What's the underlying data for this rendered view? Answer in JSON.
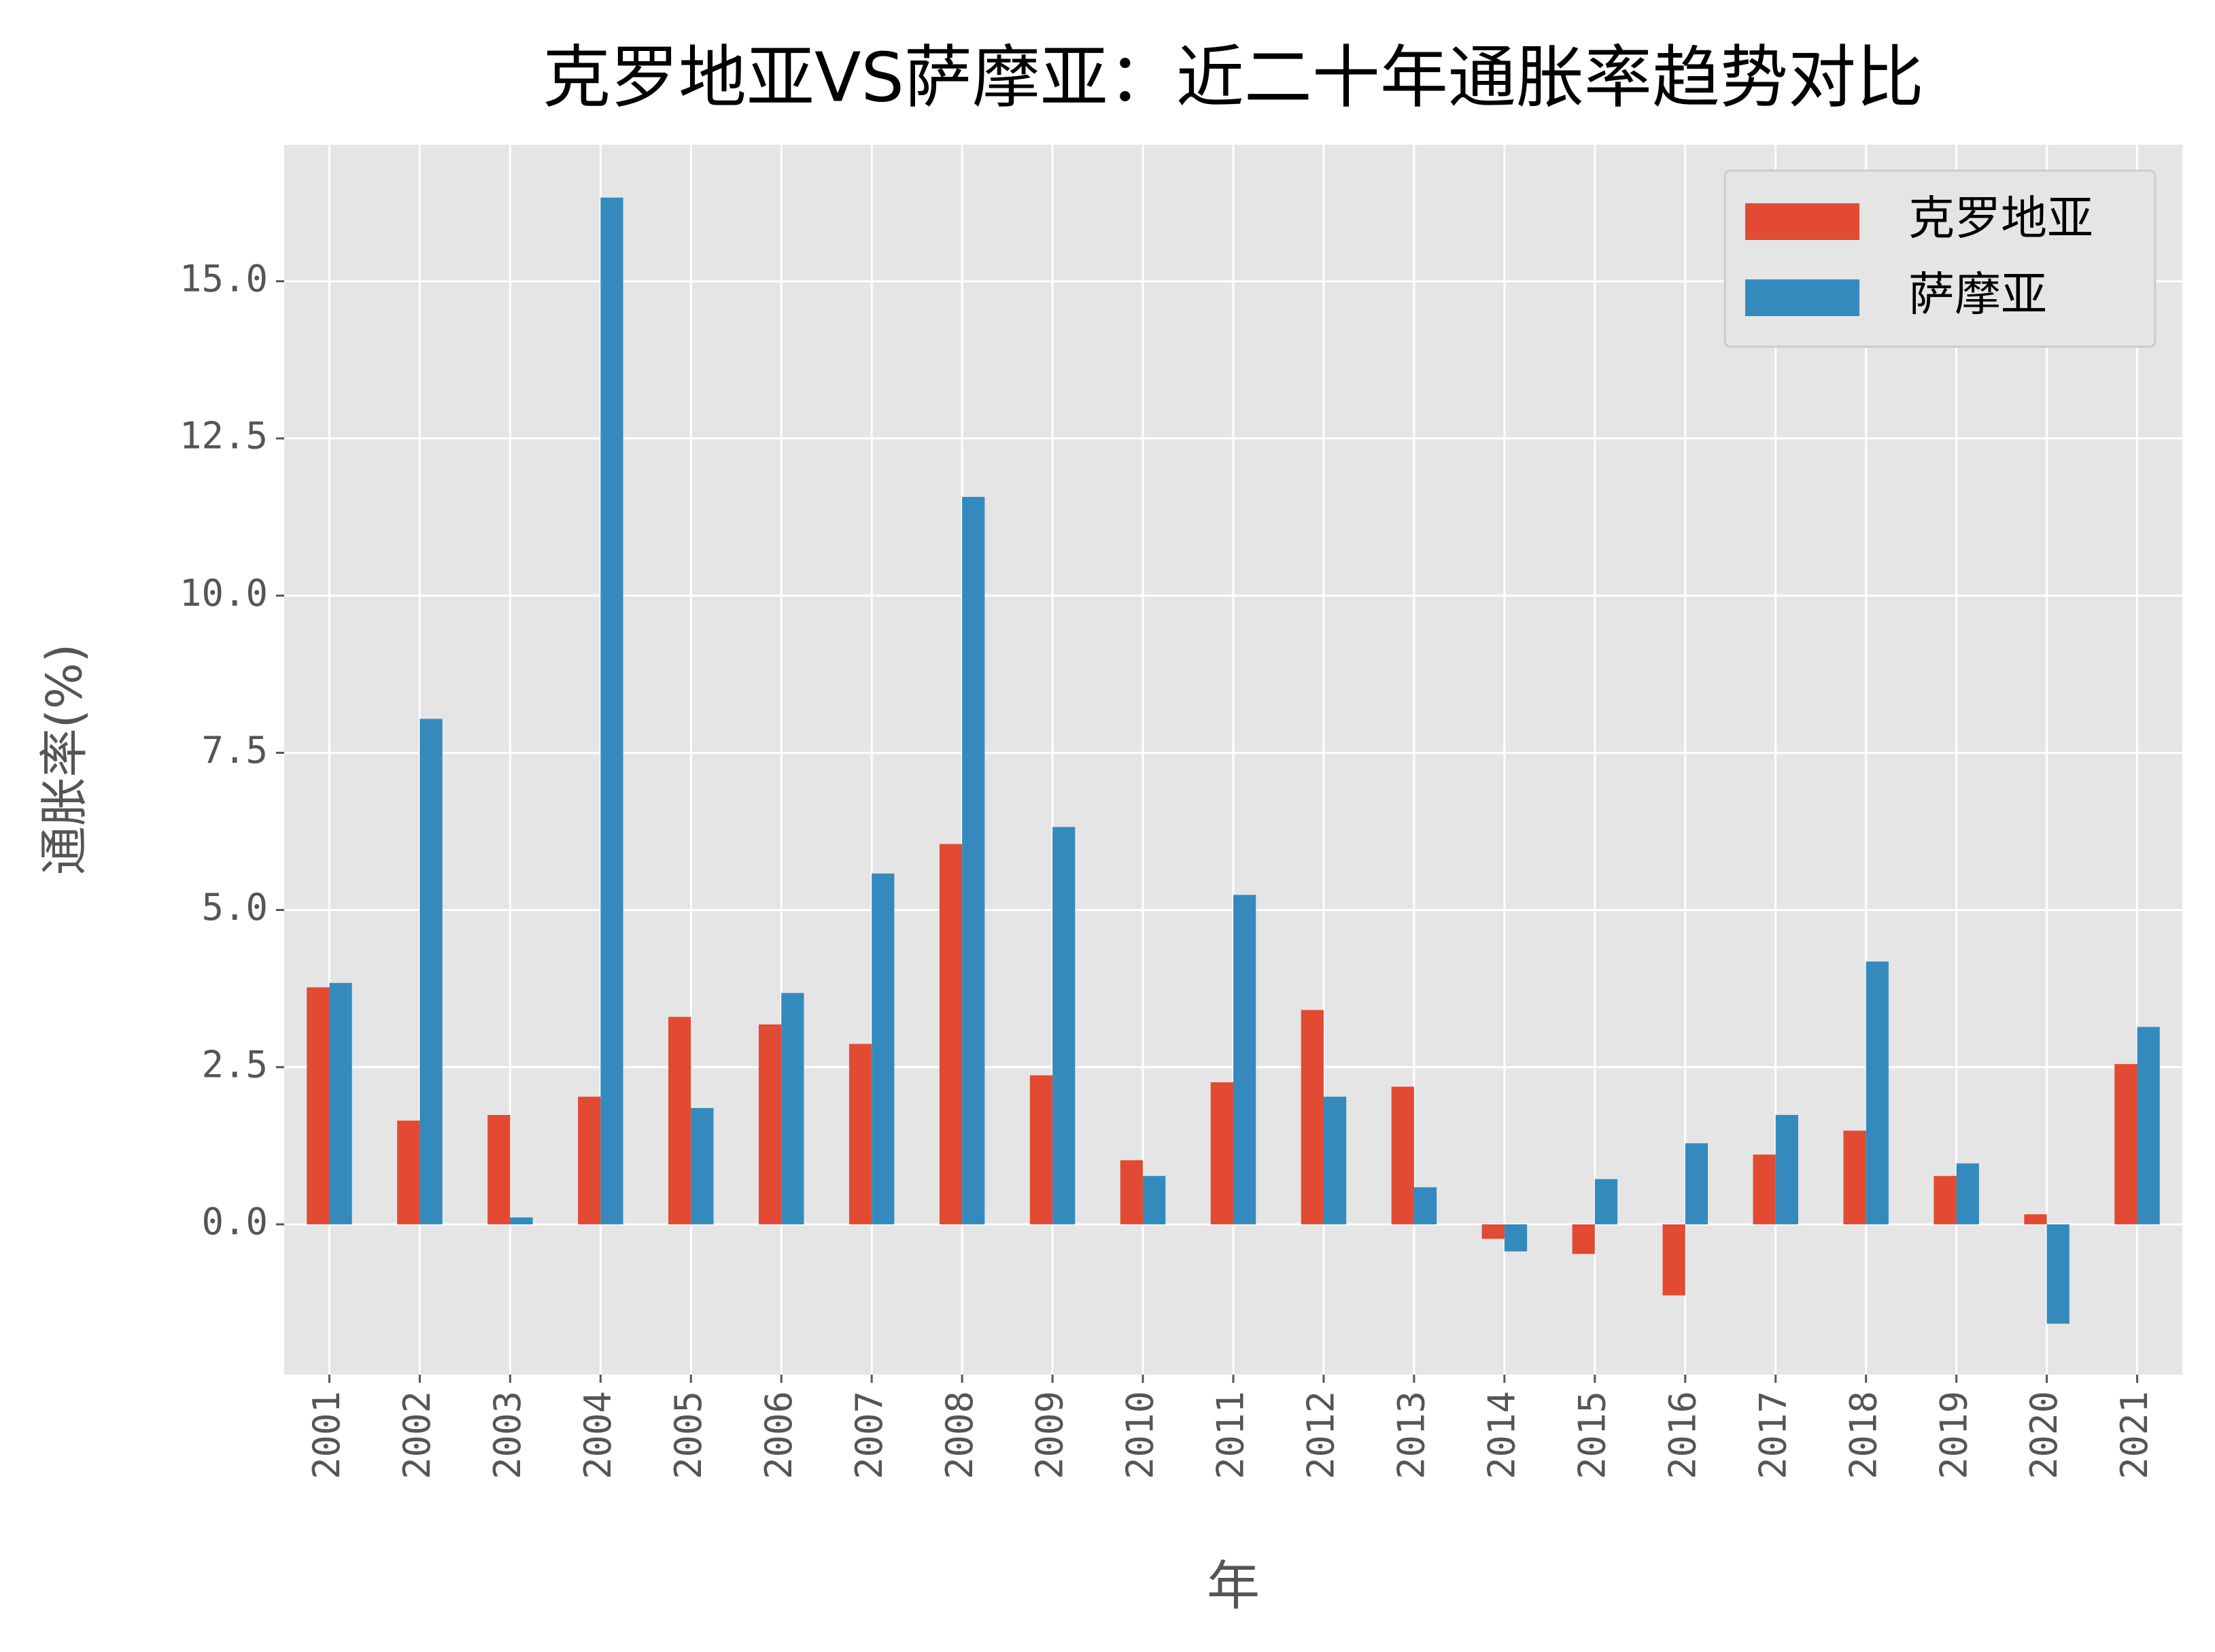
{
  "chart_data": {
    "type": "bar",
    "title": "克罗地亚VS萨摩亚：近二十年通胀率趋势对比",
    "x_label": "年",
    "y_label": "通胀率(%)",
    "categories": [
      "2001",
      "2002",
      "2003",
      "2004",
      "2005",
      "2006",
      "2007",
      "2008",
      "2009",
      "2010",
      "2011",
      "2012",
      "2013",
      "2014",
      "2015",
      "2016",
      "2017",
      "2018",
      "2019",
      "2020",
      "2021"
    ],
    "series": [
      {
        "name": "克罗地亚",
        "color": "#e24a33",
        "values": [
          3.77,
          1.65,
          1.74,
          2.03,
          3.3,
          3.18,
          2.87,
          6.05,
          2.37,
          1.02,
          2.26,
          3.41,
          2.19,
          -0.23,
          -0.47,
          -1.13,
          1.11,
          1.49,
          0.77,
          0.16,
          2.55
        ]
      },
      {
        "name": "萨摩亚",
        "color": "#348abd",
        "values": [
          3.84,
          8.04,
          0.11,
          16.33,
          1.85,
          3.68,
          5.58,
          11.57,
          6.32,
          0.77,
          5.24,
          2.03,
          0.59,
          -0.43,
          0.72,
          1.29,
          1.74,
          4.18,
          0.97,
          -1.58,
          3.14
        ]
      }
    ],
    "ylim": [
      -2.39,
      17.17
    ],
    "yticks": [
      {
        "value": 0,
        "label": "0.0"
      },
      {
        "value": 2.5,
        "label": "2.5"
      },
      {
        "value": 5,
        "label": "5.0"
      },
      {
        "value": 7.5,
        "label": "7.5"
      },
      {
        "value": 10,
        "label": "10.0"
      },
      {
        "value": 12.5,
        "label": "12.5"
      },
      {
        "value": 15,
        "label": "15.0"
      }
    ],
    "grid": true,
    "legend": "upper right"
  }
}
